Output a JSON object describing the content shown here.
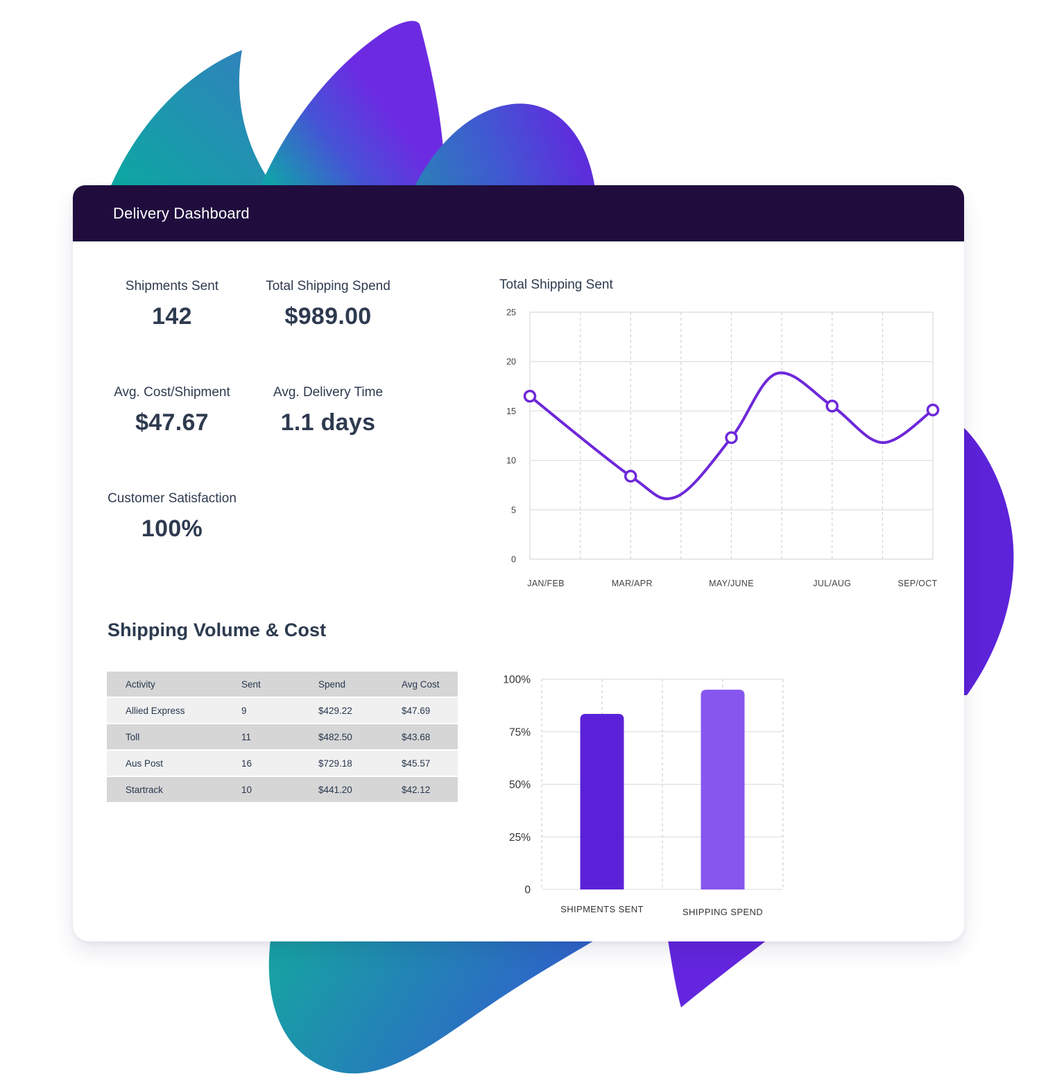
{
  "window": {
    "title": "Delivery Dashboard"
  },
  "stats": [
    {
      "label": "Shipments Sent",
      "value": "142"
    },
    {
      "label": "Total Shipping Spend",
      "value": "$989.00"
    },
    {
      "label": "Avg. Cost/Shipment",
      "value": "$47.67"
    },
    {
      "label": "Avg. Delivery Time",
      "value": "1.1 days"
    },
    {
      "label": "Customer Satisfaction",
      "value": "100%"
    }
  ],
  "section": {
    "title": "Shipping Volume & Cost"
  },
  "table": {
    "columns": [
      "Activity",
      "Sent",
      "Spend",
      "Avg Cost"
    ],
    "rows": [
      [
        "Allied Express",
        "9",
        "$429.22",
        "$47.69"
      ],
      [
        "Toll",
        "11",
        "$482.50",
        "$43.68"
      ],
      [
        "Aus Post",
        "16",
        "$729.18",
        "$45.57"
      ],
      [
        "Startrack",
        "10",
        "$441.20",
        "$42.12"
      ]
    ]
  },
  "colors": {
    "header_bg": "#200d3d",
    "text_dark": "#2e3a4f",
    "line": "#6d28d9",
    "bar_shipments": "#5b21d9",
    "bar_spend": "#8656ee",
    "grid_solid": "#e0e0e0",
    "grid_dashed": "#d4d4d4",
    "axis_text": "#424242",
    "table_row_dark": "#d6d6d6",
    "table_row_light": "#f0f0f0",
    "decor_teal": "#0ca8a2",
    "decor_blue": "#2e66c8",
    "decor_purple": "#6326de",
    "decor_violet_blob": "#5c23d9"
  },
  "chart_data": [
    {
      "type": "line",
      "title": "Total Shipping Sent",
      "categories": [
        "JAN/FEB",
        "MAR/APR",
        "MAY/JUNE",
        "JUL/AUG",
        "SEP/OCT"
      ],
      "values": [
        16.5,
        8.4,
        12.3,
        15.5,
        15.1
      ],
      "curve_extremes": [
        {
          "x": 1.45,
          "y": 6.3
        },
        {
          "x": 2.45,
          "y": 18.8
        },
        {
          "x": 3.5,
          "y": 11.8
        }
      ],
      "xlabel": "",
      "ylabel": "",
      "ylim": [
        0,
        25
      ],
      "yticks": [
        0,
        5,
        10,
        15,
        20,
        25
      ],
      "grid": "horizontal solid, vertical dashed",
      "legend": "none",
      "marker": "open-circle"
    },
    {
      "type": "bar",
      "categories": [
        "SHIPMENTS SENT",
        "SHIPPING SPEND"
      ],
      "values": [
        83.5,
        95
      ],
      "value_unit": "percent",
      "ytick_labels": [
        "0",
        "25%",
        "50%",
        "75%",
        "100%"
      ],
      "ylim": [
        0,
        100
      ],
      "xlabel": "",
      "ylabel": "",
      "grid": "horizontal solid, vertical dashed",
      "legend": "none"
    }
  ]
}
